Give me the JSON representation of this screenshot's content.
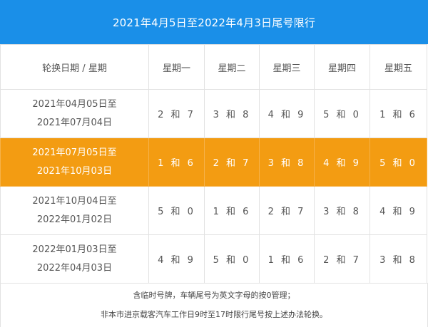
{
  "title": "2021年4月5日至2022年4月3日尾号限行",
  "header": {
    "period_col": "轮换日期 / 星期",
    "days": [
      "星期一",
      "星期二",
      "星期三",
      "星期四",
      "星期五"
    ]
  },
  "rows": [
    {
      "period_start": "2021年04月05日至",
      "period_end": "2021年07月04日",
      "plates": [
        "2 和 7",
        "3 和 8",
        "4 和 9",
        "5 和 0",
        "1 和 6"
      ]
    },
    {
      "period_start": "2021年07月05日至",
      "period_end": "2021年10月03日",
      "plates": [
        "1 和 6",
        "2 和 7",
        "3 和 8",
        "4 和 9",
        "5 和 0"
      ]
    },
    {
      "period_start": "2021年10月04日至",
      "period_end": "2022年01月02日",
      "plates": [
        "5 和 0",
        "1 和 6",
        "2 和 7",
        "3 和 8",
        "4 和 9"
      ]
    },
    {
      "period_start": "2022年01月03日至",
      "period_end": "2022年04月03日",
      "plates": [
        "4 和 9",
        "5 和 0",
        "1 和 6",
        "2 和 7",
        "3 和 8"
      ]
    }
  ],
  "notes": {
    "line1": "含临时号牌，车辆尾号为英文字母的按0管理；",
    "line2": "非本市进京载客汽车工作日9时至17时限行尾号按上述办法轮换。"
  },
  "colors": {
    "title_bg": "#1a8fe8",
    "highlight_row_bg": "#f39c12",
    "text": "#555555"
  }
}
